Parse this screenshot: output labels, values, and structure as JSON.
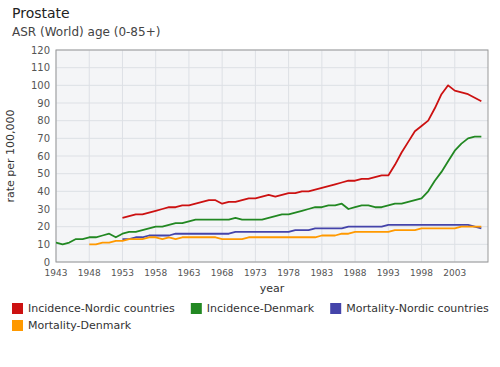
{
  "chart_data": {
    "type": "line",
    "title": "Prostate",
    "subtitle": "ASR (World) age (0-85+)",
    "x_label": "year",
    "y_label": "rate per 100,000",
    "x": [
      1943,
      1944,
      1945,
      1946,
      1947,
      1948,
      1949,
      1950,
      1951,
      1952,
      1953,
      1954,
      1955,
      1956,
      1957,
      1958,
      1959,
      1960,
      1961,
      1962,
      1963,
      1964,
      1965,
      1966,
      1967,
      1968,
      1969,
      1970,
      1971,
      1972,
      1973,
      1974,
      1975,
      1976,
      1977,
      1978,
      1979,
      1980,
      1981,
      1982,
      1983,
      1984,
      1985,
      1986,
      1987,
      1988,
      1989,
      1990,
      1991,
      1992,
      1993,
      1994,
      1995,
      1996,
      1997,
      1998,
      1999,
      2000,
      2001,
      2002,
      2003,
      2004,
      2005,
      2006,
      2007
    ],
    "series": [
      {
        "name": "Incidence-Nordic countries",
        "color": "#cc1111",
        "values": [
          null,
          null,
          null,
          null,
          null,
          null,
          null,
          null,
          null,
          null,
          25,
          26,
          27,
          27,
          28,
          29,
          30,
          31,
          31,
          32,
          32,
          33,
          34,
          35,
          35,
          33,
          34,
          34,
          35,
          36,
          36,
          37,
          38,
          37,
          38,
          39,
          39,
          40,
          40,
          41,
          42,
          43,
          44,
          45,
          46,
          46,
          47,
          47,
          48,
          49,
          49,
          55,
          62,
          68,
          74,
          77,
          80,
          87,
          95,
          100,
          97,
          96,
          95,
          93,
          91
        ]
      },
      {
        "name": "Incidence-Denmark",
        "color": "#228822",
        "values": [
          11,
          10,
          11,
          13,
          13,
          14,
          14,
          15,
          16,
          14,
          16,
          17,
          17,
          18,
          19,
          20,
          20,
          21,
          22,
          22,
          23,
          24,
          24,
          24,
          24,
          24,
          24,
          25,
          24,
          24,
          24,
          24,
          25,
          26,
          27,
          27,
          28,
          29,
          30,
          31,
          31,
          32,
          32,
          33,
          30,
          31,
          32,
          32,
          31,
          31,
          32,
          33,
          33,
          34,
          35,
          36,
          40,
          46,
          51,
          57,
          63,
          67,
          70,
          71,
          71
        ]
      },
      {
        "name": "Mortality-Nordic countries",
        "color": "#4444aa",
        "values": [
          null,
          null,
          null,
          null,
          null,
          null,
          null,
          null,
          null,
          null,
          13,
          13,
          14,
          14,
          15,
          15,
          15,
          15,
          16,
          16,
          16,
          16,
          16,
          16,
          16,
          16,
          16,
          17,
          17,
          17,
          17,
          17,
          17,
          17,
          17,
          17,
          18,
          18,
          18,
          19,
          19,
          19,
          19,
          19,
          20,
          20,
          20,
          20,
          20,
          20,
          21,
          21,
          21,
          21,
          21,
          21,
          21,
          21,
          21,
          21,
          21,
          21,
          21,
          20,
          19
        ]
      },
      {
        "name": "Mortality-Denmark",
        "color": "#ff9900",
        "values": [
          null,
          null,
          null,
          null,
          null,
          10,
          10,
          11,
          11,
          12,
          12,
          13,
          13,
          13,
          14,
          14,
          13,
          14,
          13,
          14,
          14,
          14,
          14,
          14,
          14,
          13,
          13,
          13,
          13,
          14,
          14,
          14,
          14,
          14,
          14,
          14,
          14,
          14,
          14,
          14,
          15,
          15,
          15,
          16,
          16,
          17,
          17,
          17,
          17,
          17,
          17,
          18,
          18,
          18,
          18,
          19,
          19,
          19,
          19,
          19,
          19,
          20,
          20,
          20,
          20
        ]
      }
    ],
    "xlim": [
      1943,
      2008
    ],
    "xticks": [
      1943,
      1948,
      1953,
      1958,
      1963,
      1968,
      1973,
      1978,
      1983,
      1988,
      1993,
      1998,
      2003
    ],
    "ylim": [
      0,
      120
    ],
    "yticks": [
      0,
      10,
      20,
      30,
      40,
      50,
      60,
      70,
      80,
      90,
      100,
      110,
      120
    ],
    "grid": true,
    "legend": "bottom"
  }
}
